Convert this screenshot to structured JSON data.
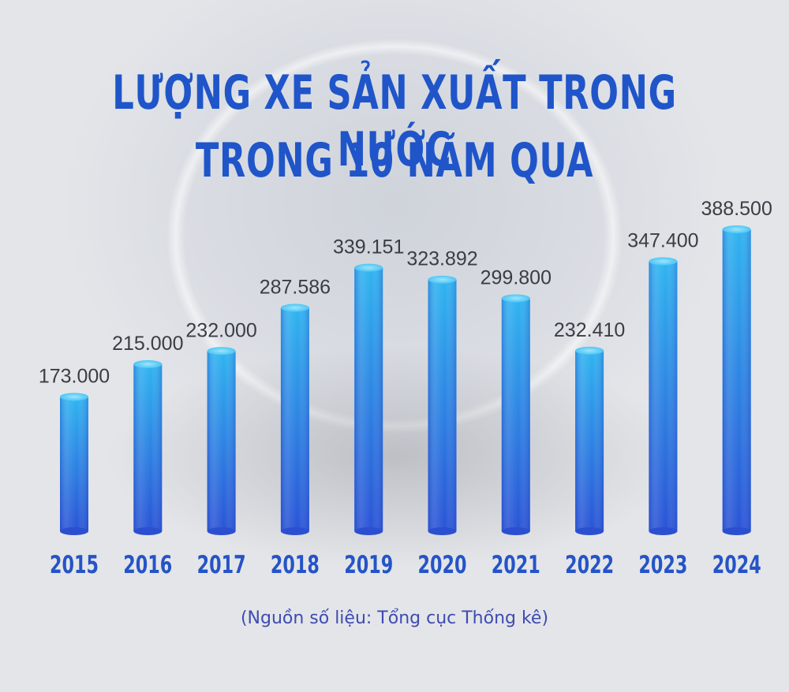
{
  "title_line1": "LƯỢNG XE SẢN XUẤT TRONG NƯỚC",
  "title_line2": "TRONG 10 NĂM QUA",
  "source": "(Nguồn số liệu: Tổng cục Thống kê)",
  "colors": {
    "title": "#1f55c9",
    "bar_top": "#2fb4f0",
    "bar_bottom": "#2a53d6",
    "year_label": "#2554c7"
  },
  "chart_data": {
    "type": "bar",
    "title": "LƯỢNG XE SẢN XUẤT TRONG NƯỚC TRONG 10 NĂM QUA",
    "categories": [
      "2015",
      "2016",
      "2017",
      "2018",
      "2019",
      "2020",
      "2021",
      "2022",
      "2023",
      "2024"
    ],
    "values": [
      173000,
      215000,
      232000,
      287586,
      339151,
      323892,
      299800,
      232410,
      347400,
      388500
    ],
    "labels": [
      "173.000",
      "215.000",
      "232.000",
      "287.586",
      "339.151",
      "323.892",
      "299.800",
      "232.410",
      "347.400",
      "388.500"
    ],
    "xlabel": "",
    "ylabel": "",
    "ylim": [
      0,
      388500
    ],
    "grid": false,
    "legend": "none"
  }
}
